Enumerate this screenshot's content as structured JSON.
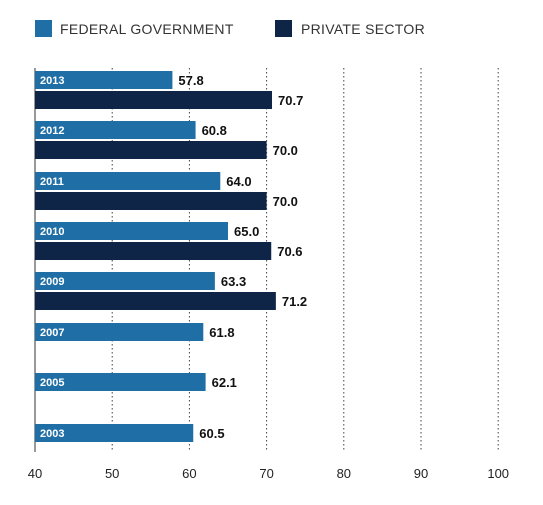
{
  "chart_data": {
    "type": "bar",
    "orientation": "horizontal",
    "title": "",
    "xlabel": "",
    "ylabel": "",
    "xlim": [
      40,
      100
    ],
    "xticks": [
      40,
      50,
      60,
      70,
      80,
      90,
      100
    ],
    "grid": "dotted vertical",
    "legend_position": "top-left",
    "categories": [
      "2013",
      "2012",
      "2011",
      "2010",
      "2009",
      "2007",
      "2005",
      "2003"
    ],
    "series": [
      {
        "name": "FEDERAL GOVERNMENT",
        "color": "#1f6fa6",
        "values": [
          57.8,
          60.8,
          64.0,
          65.0,
          63.3,
          61.8,
          62.1,
          60.5
        ],
        "labels": [
          "57.8",
          "60.8",
          "64.0",
          "65.0",
          "63.3",
          "61.8",
          "62.1",
          "60.5"
        ]
      },
      {
        "name": "PRIVATE SECTOR",
        "color": "#0f2548",
        "values": [
          70.7,
          70.0,
          70.0,
          70.6,
          71.2,
          null,
          null,
          null
        ],
        "labels": [
          "70.7",
          "70.0",
          "70.0",
          "70.6",
          "71.2",
          null,
          null,
          null
        ]
      }
    ]
  }
}
